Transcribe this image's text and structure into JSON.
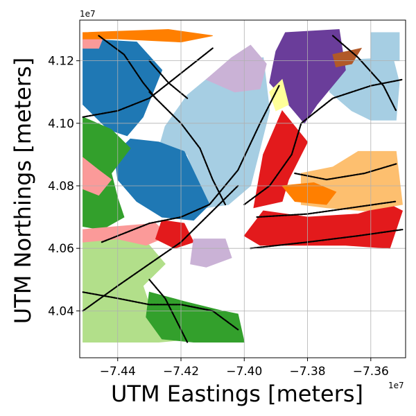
{
  "chart_data": {
    "type": "scatter",
    "title": "",
    "xlabel": "UTM Eastings [meters]",
    "ylabel": "UTM Northings [meters]",
    "x_offset_label": "1e7",
    "y_offset_label": "1e7",
    "xlim": [
      -7.452,
      -7.349
    ],
    "ylim": [
      4.025,
      4.133
    ],
    "x_ticks": [
      -7.44,
      -7.42,
      -7.4,
      -7.38,
      -7.36
    ],
    "x_tick_labels": [
      "−7.44",
      "−7.42",
      "−7.40",
      "−7.38",
      "−7.36"
    ],
    "y_ticks": [
      4.04,
      4.06,
      4.08,
      4.1,
      4.12
    ],
    "y_tick_labels": [
      "4.04",
      "4.06",
      "4.08",
      "4.10",
      "4.12"
    ],
    "grid": true,
    "legend": "none",
    "colors": {
      "light_blue": "#a6cee3",
      "blue": "#1f78b4",
      "light_green": "#b2df8a",
      "green": "#33a02c",
      "pink": "#fb9a99",
      "red": "#e31a1c",
      "light_orange": "#fdbf6f",
      "orange": "#ff7f00",
      "lavender": "#cab2d6",
      "purple": "#6a3d9a",
      "yellow": "#ffff99",
      "brown": "#b15928",
      "road": "#000000"
    },
    "regions": [
      {
        "color": "light_blue",
        "points": [
          [
            -7.425,
            4.099
          ],
          [
            -7.418,
            4.109
          ],
          [
            -7.406,
            4.119
          ],
          [
            -7.394,
            4.121
          ],
          [
            -7.392,
            4.104
          ],
          [
            -7.398,
            4.08
          ],
          [
            -7.405,
            4.074
          ],
          [
            -7.412,
            4.073
          ],
          [
            -7.418,
            4.09
          ],
          [
            -7.427,
            4.092
          ]
        ]
      },
      {
        "color": "light_blue",
        "points": [
          [
            -7.372,
            4.12
          ],
          [
            -7.353,
            4.121
          ],
          [
            -7.351,
            4.113
          ],
          [
            -7.352,
            4.101
          ],
          [
            -7.36,
            4.101
          ],
          [
            -7.366,
            4.104
          ],
          [
            -7.373,
            4.11
          ]
        ]
      },
      {
        "color": "light_blue",
        "points": [
          [
            -7.36,
            4.129
          ],
          [
            -7.351,
            4.129
          ],
          [
            -7.351,
            4.12
          ],
          [
            -7.36,
            4.12
          ]
        ]
      },
      {
        "color": "blue",
        "points": [
          [
            -7.451,
            4.127
          ],
          [
            -7.434,
            4.126
          ],
          [
            -7.426,
            4.117
          ],
          [
            -7.432,
            4.102
          ],
          [
            -7.437,
            4.096
          ],
          [
            -7.443,
            4.098
          ],
          [
            -7.451,
            4.106
          ]
        ]
      },
      {
        "color": "blue",
        "points": [
          [
            -7.436,
            4.095
          ],
          [
            -7.427,
            4.094
          ],
          [
            -7.419,
            4.091
          ],
          [
            -7.411,
            4.074
          ],
          [
            -7.416,
            4.069
          ],
          [
            -7.426,
            4.07
          ],
          [
            -7.434,
            4.075
          ],
          [
            -7.44,
            4.082
          ],
          [
            -7.441,
            4.09
          ]
        ]
      },
      {
        "color": "light_green",
        "points": [
          [
            -7.451,
            4.063
          ],
          [
            -7.438,
            4.066
          ],
          [
            -7.43,
            4.061
          ],
          [
            -7.425,
            4.055
          ],
          [
            -7.432,
            4.048
          ],
          [
            -7.43,
            4.042
          ],
          [
            -7.424,
            4.037
          ],
          [
            -7.416,
            4.031
          ],
          [
            -7.427,
            4.03
          ],
          [
            -7.451,
            4.03
          ]
        ]
      },
      {
        "color": "green",
        "points": [
          [
            -7.451,
            4.102
          ],
          [
            -7.442,
            4.098
          ],
          [
            -7.436,
            4.092
          ],
          [
            -7.442,
            4.084
          ],
          [
            -7.44,
            4.076
          ],
          [
            -7.438,
            4.07
          ],
          [
            -7.445,
            4.066
          ],
          [
            -7.451,
            4.067
          ]
        ]
      },
      {
        "color": "green",
        "points": [
          [
            -7.43,
            4.046
          ],
          [
            -7.419,
            4.043
          ],
          [
            -7.407,
            4.04
          ],
          [
            -7.402,
            4.039
          ],
          [
            -7.4,
            4.03
          ],
          [
            -7.416,
            4.03
          ],
          [
            -7.426,
            4.031
          ],
          [
            -7.431,
            4.038
          ]
        ]
      },
      {
        "color": "pink",
        "points": [
          [
            -7.451,
            4.089
          ],
          [
            -7.446,
            4.085
          ],
          [
            -7.442,
            4.082
          ],
          [
            -7.446,
            4.077
          ],
          [
            -7.451,
            4.079
          ]
        ]
      },
      {
        "color": "pink",
        "points": [
          [
            -7.451,
            4.066
          ],
          [
            -7.44,
            4.067
          ],
          [
            -7.428,
            4.068
          ],
          [
            -7.424,
            4.064
          ],
          [
            -7.431,
            4.061
          ],
          [
            -7.44,
            4.063
          ],
          [
            -7.451,
            4.062
          ]
        ]
      },
      {
        "color": "pink",
        "points": [
          [
            -7.451,
            4.129
          ],
          [
            -7.444,
            4.129
          ],
          [
            -7.446,
            4.124
          ],
          [
            -7.451,
            4.124
          ]
        ]
      },
      {
        "color": "red",
        "points": [
          [
            -7.388,
            4.104
          ],
          [
            -7.38,
            4.094
          ],
          [
            -7.386,
            4.082
          ],
          [
            -7.388,
            4.075
          ],
          [
            -7.397,
            4.073
          ],
          [
            -7.394,
            4.09
          ]
        ]
      },
      {
        "color": "red",
        "points": [
          [
            -7.394,
            4.072
          ],
          [
            -7.38,
            4.07
          ],
          [
            -7.364,
            4.071
          ],
          [
            -7.354,
            4.074
          ],
          [
            -7.35,
            4.072
          ],
          [
            -7.354,
            4.06
          ],
          [
            -7.368,
            4.061
          ],
          [
            -7.38,
            4.061
          ],
          [
            -7.395,
            4.061
          ],
          [
            -7.4,
            4.064
          ]
        ]
      },
      {
        "color": "red",
        "points": [
          [
            -7.426,
            4.069
          ],
          [
            -7.419,
            4.068
          ],
          [
            -7.416,
            4.062
          ],
          [
            -7.422,
            4.06
          ],
          [
            -7.428,
            4.063
          ]
        ]
      },
      {
        "color": "light_orange",
        "points": [
          [
            -7.382,
            4.084
          ],
          [
            -7.372,
            4.086
          ],
          [
            -7.364,
            4.091
          ],
          [
            -7.352,
            4.091
          ],
          [
            -7.35,
            4.074
          ],
          [
            -7.362,
            4.072
          ],
          [
            -7.374,
            4.073
          ],
          [
            -7.382,
            4.074
          ]
        ]
      },
      {
        "color": "orange",
        "points": [
          [
            -7.388,
            4.08
          ],
          [
            -7.378,
            4.081
          ],
          [
            -7.371,
            4.078
          ],
          [
            -7.374,
            4.074
          ],
          [
            -7.384,
            4.075
          ]
        ]
      },
      {
        "color": "orange",
        "points": [
          [
            -7.451,
            4.129
          ],
          [
            -7.424,
            4.13
          ],
          [
            -7.41,
            4.128
          ],
          [
            -7.42,
            4.126
          ],
          [
            -7.44,
            4.127
          ],
          [
            -7.451,
            4.127
          ]
        ]
      },
      {
        "color": "lavender",
        "points": [
          [
            -7.416,
            4.063
          ],
          [
            -7.406,
            4.063
          ],
          [
            -7.404,
            4.057
          ],
          [
            -7.412,
            4.054
          ],
          [
            -7.417,
            4.055
          ]
        ]
      },
      {
        "color": "lavender",
        "points": [
          [
            -7.412,
            4.114
          ],
          [
            -7.404,
            4.121
          ],
          [
            -7.398,
            4.125
          ],
          [
            -7.393,
            4.119
          ],
          [
            -7.395,
            4.111
          ],
          [
            -7.403,
            4.11
          ]
        ]
      },
      {
        "color": "purple",
        "points": [
          [
            -7.387,
            4.129
          ],
          [
            -7.37,
            4.13
          ],
          [
            -7.368,
            4.117
          ],
          [
            -7.377,
            4.106
          ],
          [
            -7.381,
            4.1
          ],
          [
            -7.386,
            4.106
          ],
          [
            -7.392,
            4.113
          ],
          [
            -7.39,
            4.123
          ]
        ]
      },
      {
        "color": "yellow",
        "points": [
          [
            -7.392,
            4.11
          ],
          [
            -7.388,
            4.114
          ],
          [
            -7.386,
            4.106
          ],
          [
            -7.39,
            4.104
          ]
        ]
      },
      {
        "color": "brown",
        "points": [
          [
            -7.372,
            4.122
          ],
          [
            -7.363,
            4.124
          ],
          [
            -7.366,
            4.119
          ],
          [
            -7.371,
            4.118
          ]
        ]
      }
    ],
    "roads": [
      [
        [
          -7.451,
          4.102
        ],
        [
          -7.44,
          4.104
        ],
        [
          -7.43,
          4.108
        ],
        [
          -7.42,
          4.116
        ],
        [
          -7.41,
          4.124
        ]
      ],
      [
        [
          -7.445,
          4.062
        ],
        [
          -7.43,
          4.068
        ],
        [
          -7.42,
          4.07
        ],
        [
          -7.411,
          4.074
        ],
        [
          -7.402,
          4.085
        ],
        [
          -7.395,
          4.1
        ],
        [
          -7.389,
          4.112
        ]
      ],
      [
        [
          -7.451,
          4.04
        ],
        [
          -7.44,
          4.048
        ],
        [
          -7.43,
          4.055
        ],
        [
          -7.42,
          4.062
        ],
        [
          -7.41,
          4.072
        ],
        [
          -7.402,
          4.08
        ]
      ],
      [
        [
          -7.451,
          4.046
        ],
        [
          -7.44,
          4.044
        ],
        [
          -7.43,
          4.042
        ],
        [
          -7.42,
          4.042
        ],
        [
          -7.41,
          4.04
        ],
        [
          -7.402,
          4.034
        ]
      ],
      [
        [
          -7.398,
          4.06
        ],
        [
          -7.38,
          4.062
        ],
        [
          -7.364,
          4.064
        ],
        [
          -7.35,
          4.066
        ]
      ],
      [
        [
          -7.396,
          4.07
        ],
        [
          -7.38,
          4.071
        ],
        [
          -7.366,
          4.073
        ],
        [
          -7.352,
          4.075
        ]
      ],
      [
        [
          -7.384,
          4.084
        ],
        [
          -7.374,
          4.082
        ],
        [
          -7.362,
          4.084
        ],
        [
          -7.352,
          4.087
        ]
      ],
      [
        [
          -7.4,
          4.074
        ],
        [
          -7.392,
          4.08
        ],
        [
          -7.385,
          4.09
        ],
        [
          -7.382,
          4.1
        ],
        [
          -7.372,
          4.108
        ],
        [
          -7.36,
          4.112
        ],
        [
          -7.35,
          4.114
        ]
      ],
      [
        [
          -7.43,
          4.11
        ],
        [
          -7.42,
          4.1
        ],
        [
          -7.414,
          4.092
        ],
        [
          -7.41,
          4.082
        ],
        [
          -7.406,
          4.074
        ]
      ],
      [
        [
          -7.43,
          4.12
        ],
        [
          -7.424,
          4.113
        ],
        [
          -7.418,
          4.108
        ]
      ],
      [
        [
          -7.372,
          4.128
        ],
        [
          -7.364,
          4.121
        ],
        [
          -7.356,
          4.112
        ],
        [
          -7.352,
          4.104
        ]
      ],
      [
        [
          -7.43,
          4.05
        ],
        [
          -7.425,
          4.044
        ],
        [
          -7.42,
          4.034
        ],
        [
          -7.418,
          4.03
        ]
      ],
      [
        [
          -7.446,
          4.128
        ],
        [
          -7.438,
          4.122
        ],
        [
          -7.432,
          4.113
        ],
        [
          -7.428,
          4.108
        ]
      ]
    ]
  }
}
